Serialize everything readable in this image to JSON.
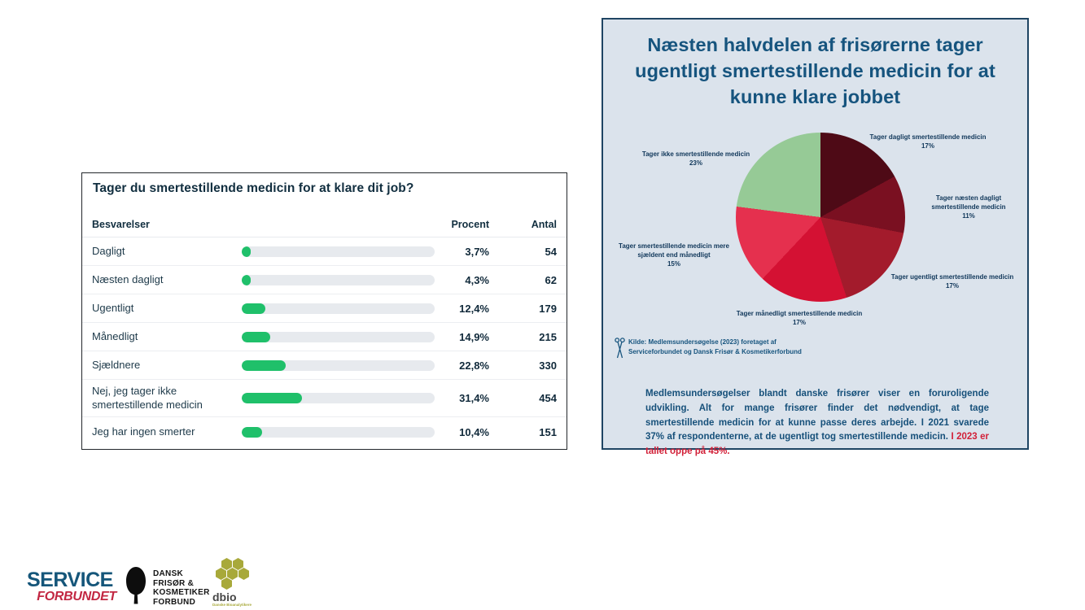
{
  "colors": {
    "accent_green": "#1fc06a",
    "bar_track": "#e7eaee",
    "panel_bg": "#dbe3ec",
    "panel_border": "#1f4563",
    "panel_title_blue": "#16547e",
    "table_text_navy": "#112e3f",
    "pie_label_navy": "#10375a",
    "highlight_red": "#d22038",
    "service_blue": "#15567a",
    "service_red": "#c22742",
    "dbio_olive": "#a8a93a"
  },
  "table": {
    "title": "Tager du smertestillende medicin for at klare dit job?",
    "headers": {
      "answers": "Besvarelser",
      "percent": "Procent",
      "count": "Antal"
    },
    "rows": [
      {
        "label": "Dagligt",
        "percent_label": "3,7%",
        "percent": 3.7,
        "count": "54"
      },
      {
        "label": "Næsten dagligt",
        "percent_label": "4,3%",
        "percent": 4.3,
        "count": "62"
      },
      {
        "label": "Ugentligt",
        "percent_label": "12,4%",
        "percent": 12.4,
        "count": "179"
      },
      {
        "label": "Månedligt",
        "percent_label": "14,9%",
        "percent": 14.9,
        "count": "215"
      },
      {
        "label": "Sjældnere",
        "percent_label": "22,8%",
        "percent": 22.8,
        "count": "330"
      },
      {
        "label": "Nej, jeg tager ikke smertestillende medicin",
        "percent_label": "31,4%",
        "percent": 31.4,
        "count": "454"
      },
      {
        "label": "Jeg har ingen smerter",
        "percent_label": "10,4%",
        "percent": 10.4,
        "count": "151"
      }
    ]
  },
  "infographic": {
    "title": "Næsten halvdelen af frisørerne tager ugentligt smertestillende medicin for at kunne klare jobbet",
    "source_line1": "Kilde: Medlemsundersøgelse (2023) foretaget af",
    "source_line2": "Serviceforbundet og Dansk Frisør & Kosmetikerforbund",
    "footer_text": "Medlemsundersøgelser blandt danske frisører viser en foruroligende udvikling. Alt for mange frisører finder det nødvendigt, at tage smertestillende medicin for at kunne passe deres arbejde. I 2021 svarede 37% af respondenterne, at de ugentligt tog smertestillende medicin.",
    "footer_highlight": "I 2023 er tallet oppe på 45%."
  },
  "chart_data": [
    {
      "type": "bar",
      "orientation": "horizontal",
      "title": "Tager du smertestillende medicin for at klare dit job?",
      "categories": [
        "Dagligt",
        "Næsten dagligt",
        "Ugentligt",
        "Månedligt",
        "Sjældnere",
        "Nej, jeg tager ikke smertestillende medicin",
        "Jeg har ingen smerter"
      ],
      "series": [
        {
          "name": "Procent",
          "values": [
            3.7,
            4.3,
            12.4,
            14.9,
            22.8,
            31.4,
            10.4
          ]
        },
        {
          "name": "Antal",
          "values": [
            54,
            62,
            179,
            215,
            330,
            454,
            151
          ]
        }
      ],
      "xlabel": "",
      "ylabel": "",
      "xlim": [
        0,
        100
      ],
      "bar_color": "#1fc06a",
      "grid": false
    },
    {
      "type": "pie",
      "title": "Næsten halvdelen af frisørerne tager ugentligt smertestillende medicin for at kunne klare jobbet",
      "start_angle_deg": 0,
      "direction": "clockwise",
      "legend_position": "outside-labels",
      "slices": [
        {
          "label": "Tager dagligt smertestillende medicin",
          "pct_label": "17%",
          "value": 17,
          "color": "#4e0a16"
        },
        {
          "label": "Tager næsten dagligt smertestillende medicin",
          "pct_label": "11%",
          "value": 11,
          "color": "#7a1021"
        },
        {
          "label": "Tager ugentligt smertestillende medicin",
          "pct_label": "17%",
          "value": 17,
          "color": "#a31b2c"
        },
        {
          "label": "Tager månedligt smertestillende medicin",
          "pct_label": "17%",
          "value": 17,
          "color": "#d41133"
        },
        {
          "label": "Tager smertestillende medicin mere sjældent end månedligt",
          "pct_label": "15%",
          "value": 15,
          "color": "#e5304e"
        },
        {
          "label": "Tager ikke smertestillende medicin",
          "pct_label": "23%",
          "value": 23,
          "color": "#96ca96"
        }
      ]
    }
  ],
  "logos": {
    "service": {
      "top": "SERVICE",
      "bottom": "FORBUNDET"
    },
    "dfkf": {
      "line1": "DANSK",
      "line2": "FRISØR &",
      "line3": "KOSMETIKER",
      "line4": "FORBUND"
    },
    "dbio": {
      "name": "dbio",
      "subtitle": "Danske Bioanalytikere"
    }
  }
}
